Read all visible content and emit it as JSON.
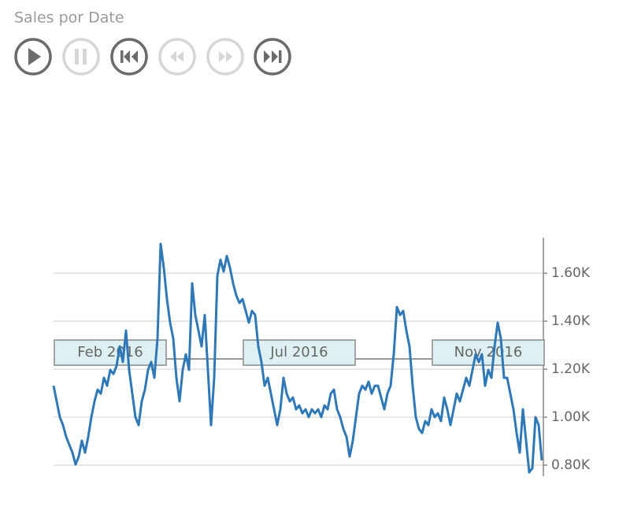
{
  "chart_data": {
    "type": "line",
    "title": "Sales por Date",
    "categories": [
      null,
      null,
      null,
      null,
      null,
      null,
      null,
      null,
      null,
      null,
      null,
      null,
      null,
      null,
      null,
      null,
      null,
      null,
      "Feb 2016",
      null,
      null,
      null,
      null,
      null,
      null,
      null,
      null,
      null,
      null,
      null,
      null,
      null,
      null,
      null,
      null,
      null,
      null,
      null,
      null,
      null,
      null,
      null,
      null,
      null,
      null,
      null,
      null,
      null,
      null,
      null,
      null,
      null,
      null,
      null,
      null,
      null,
      null,
      null,
      null,
      null,
      null,
      null,
      null,
      null,
      null,
      null,
      null,
      null,
      null,
      null,
      null,
      null,
      null,
      null,
      null,
      null,
      null,
      null,
      "Jul 2016",
      null,
      null,
      null,
      null,
      null,
      null,
      null,
      null,
      null,
      null,
      null,
      null,
      null,
      null,
      null,
      null,
      null,
      null,
      null,
      null,
      null,
      null,
      null,
      null,
      null,
      null,
      null,
      null,
      null,
      null,
      null,
      null,
      null,
      null,
      null,
      null,
      null,
      null,
      null,
      null,
      null,
      null,
      null,
      null,
      null,
      null,
      null,
      null,
      null,
      null,
      null,
      null,
      null,
      null,
      null,
      null,
      null,
      null,
      null,
      "Nov 2016",
      null,
      null,
      null,
      null,
      null,
      null,
      null,
      null,
      null,
      null,
      null,
      null,
      null,
      null,
      null,
      null,
      null
    ],
    "values": [
      1131,
      1066,
      1000,
      967,
      918,
      885,
      852,
      803,
      836,
      902,
      852,
      918,
      1000,
      1066,
      1115,
      1098,
      1164,
      1131,
      1197,
      1180,
      1213,
      1295,
      1230,
      1361,
      1197,
      1098,
      1000,
      967,
      1066,
      1115,
      1197,
      1230,
      1164,
      1328,
      1722,
      1623,
      1492,
      1394,
      1328,
      1164,
      1066,
      1197,
      1262,
      1197,
      1558,
      1426,
      1361,
      1295,
      1426,
      1197,
      967,
      1164,
      1590,
      1656,
      1607,
      1672,
      1623,
      1558,
      1508,
      1476,
      1492,
      1443,
      1394,
      1443,
      1426,
      1295,
      1230,
      1131,
      1164,
      1098,
      1033,
      967,
      1033,
      1164,
      1098,
      1066,
      1082,
      1033,
      1049,
      1016,
      1033,
      1000,
      1033,
      1016,
      1033,
      1000,
      1049,
      1033,
      1098,
      1115,
      1033,
      1000,
      951,
      918,
      836,
      902,
      1000,
      1098,
      1131,
      1115,
      1148,
      1098,
      1131,
      1131,
      1082,
      1033,
      1098,
      1131,
      1262,
      1459,
      1426,
      1443,
      1361,
      1295,
      1131,
      1000,
      951,
      934,
      984,
      967,
      1033,
      1000,
      1016,
      984,
      1082,
      1033,
      967,
      1033,
      1098,
      1066,
      1115,
      1164,
      1131,
      1197,
      1262,
      1230,
      1262,
      1131,
      1197,
      1164,
      1295,
      1394,
      1328,
      1164,
      1164,
      1098,
      1033,
      934,
      852,
      1033,
      902,
      770,
      787,
      1000,
      967,
      820
    ],
    "color": "#2f78b8",
    "ylim": [
      754,
      1748
    ],
    "yticks": [
      {
        "value": 800,
        "label": "0.80K"
      },
      {
        "value": 1000,
        "label": "1.00K"
      },
      {
        "value": 1200,
        "label": "1.20K"
      },
      {
        "value": 1400,
        "label": "1.40K"
      },
      {
        "value": 1600,
        "label": "1.60K"
      }
    ],
    "grid": true
  }
}
